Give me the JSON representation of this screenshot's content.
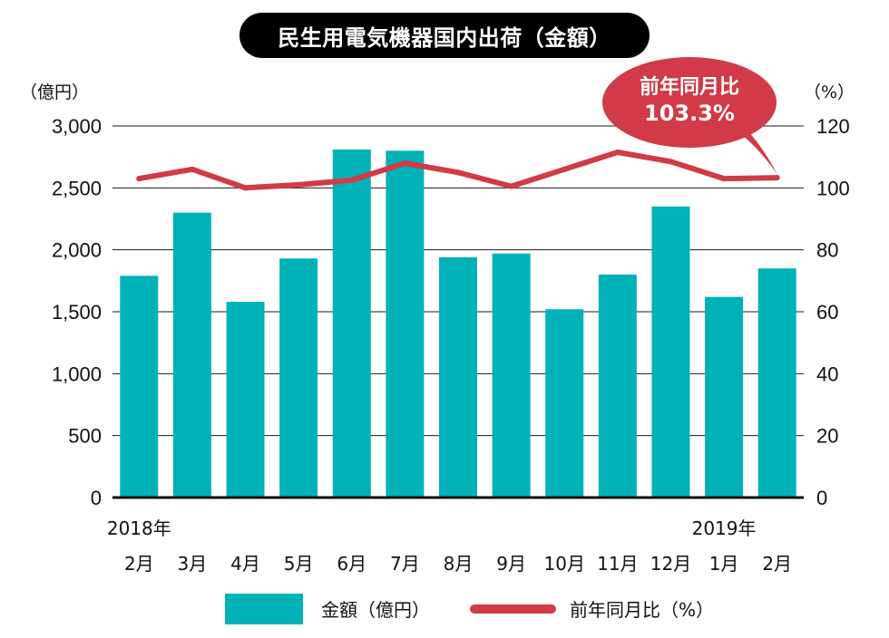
{
  "chart_data": {
    "type": "bar",
    "title": "民生用電気機器国内出荷（金額）",
    "year_labels": [
      {
        "label": "2018年",
        "category_index": 0
      },
      {
        "label": "2019年",
        "category_index": 11
      }
    ],
    "categories": [
      "2月",
      "3月",
      "4月",
      "5月",
      "6月",
      "7月",
      "8月",
      "9月",
      "10月",
      "11月",
      "12月",
      "1月",
      "2月"
    ],
    "series": [
      {
        "name": "金額（億円）",
        "type": "bar",
        "axis": "left",
        "color": "#00b2b8",
        "values": [
          1790,
          2300,
          1580,
          1930,
          2810,
          2800,
          1940,
          1970,
          1520,
          1800,
          2350,
          1620,
          1850
        ]
      },
      {
        "name": "前年同月比（%）",
        "type": "line",
        "axis": "right",
        "color": "#d13a46",
        "values": [
          103,
          106,
          100,
          101,
          102.5,
          108,
          105,
          100.5,
          106,
          111.5,
          108.5,
          103,
          103.3
        ]
      }
    ],
    "left_axis": {
      "unit": "（億円）",
      "min": 0,
      "max": 3000,
      "ticks": [
        0,
        500,
        1000,
        1500,
        2000,
        2500,
        3000
      ],
      "tick_labels": [
        "0",
        "500",
        "1,000",
        "1,500",
        "2,000",
        "2,500",
        "3,000"
      ]
    },
    "right_axis": {
      "unit": "（%）",
      "min": 0,
      "max": 120,
      "ticks": [
        0,
        20,
        40,
        60,
        80,
        100,
        120
      ],
      "tick_labels": [
        "0",
        "20",
        "40",
        "60",
        "80",
        "100",
        "120"
      ]
    },
    "grid": true,
    "legend_position": "bottom",
    "annotation": {
      "text_line1": "前年同月比",
      "text_line2": "103.3%",
      "color": "#d13a46",
      "points_to_index": 12
    }
  }
}
